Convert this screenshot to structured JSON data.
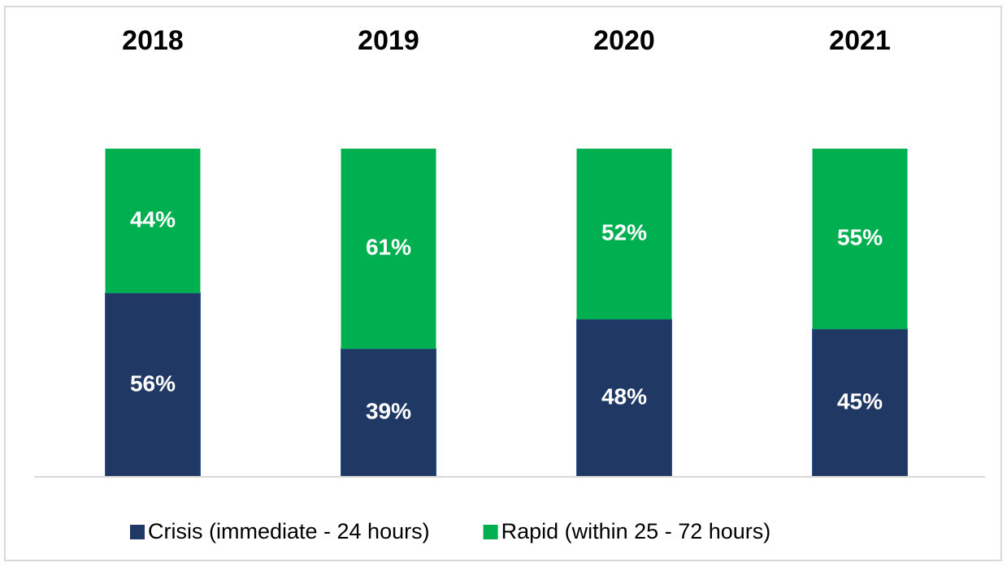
{
  "chart_data": {
    "type": "stacked_bar",
    "categories": [
      "2018",
      "2019",
      "2020",
      "2021"
    ],
    "series": [
      {
        "name": "Crisis (immediate - 24 hours)",
        "color": "#203864",
        "values": [
          56,
          39,
          48,
          45
        ],
        "value_labels": [
          "56%",
          "39%",
          "48%",
          "45%"
        ]
      },
      {
        "name": "Rapid (within 25 - 72 hours)",
        "color": "#00b050",
        "values": [
          44,
          61,
          52,
          55
        ],
        "value_labels": [
          "44%",
          "61%",
          "52%",
          "55%"
        ]
      }
    ],
    "ylim": [
      0,
      100
    ],
    "legend": "bottom"
  }
}
